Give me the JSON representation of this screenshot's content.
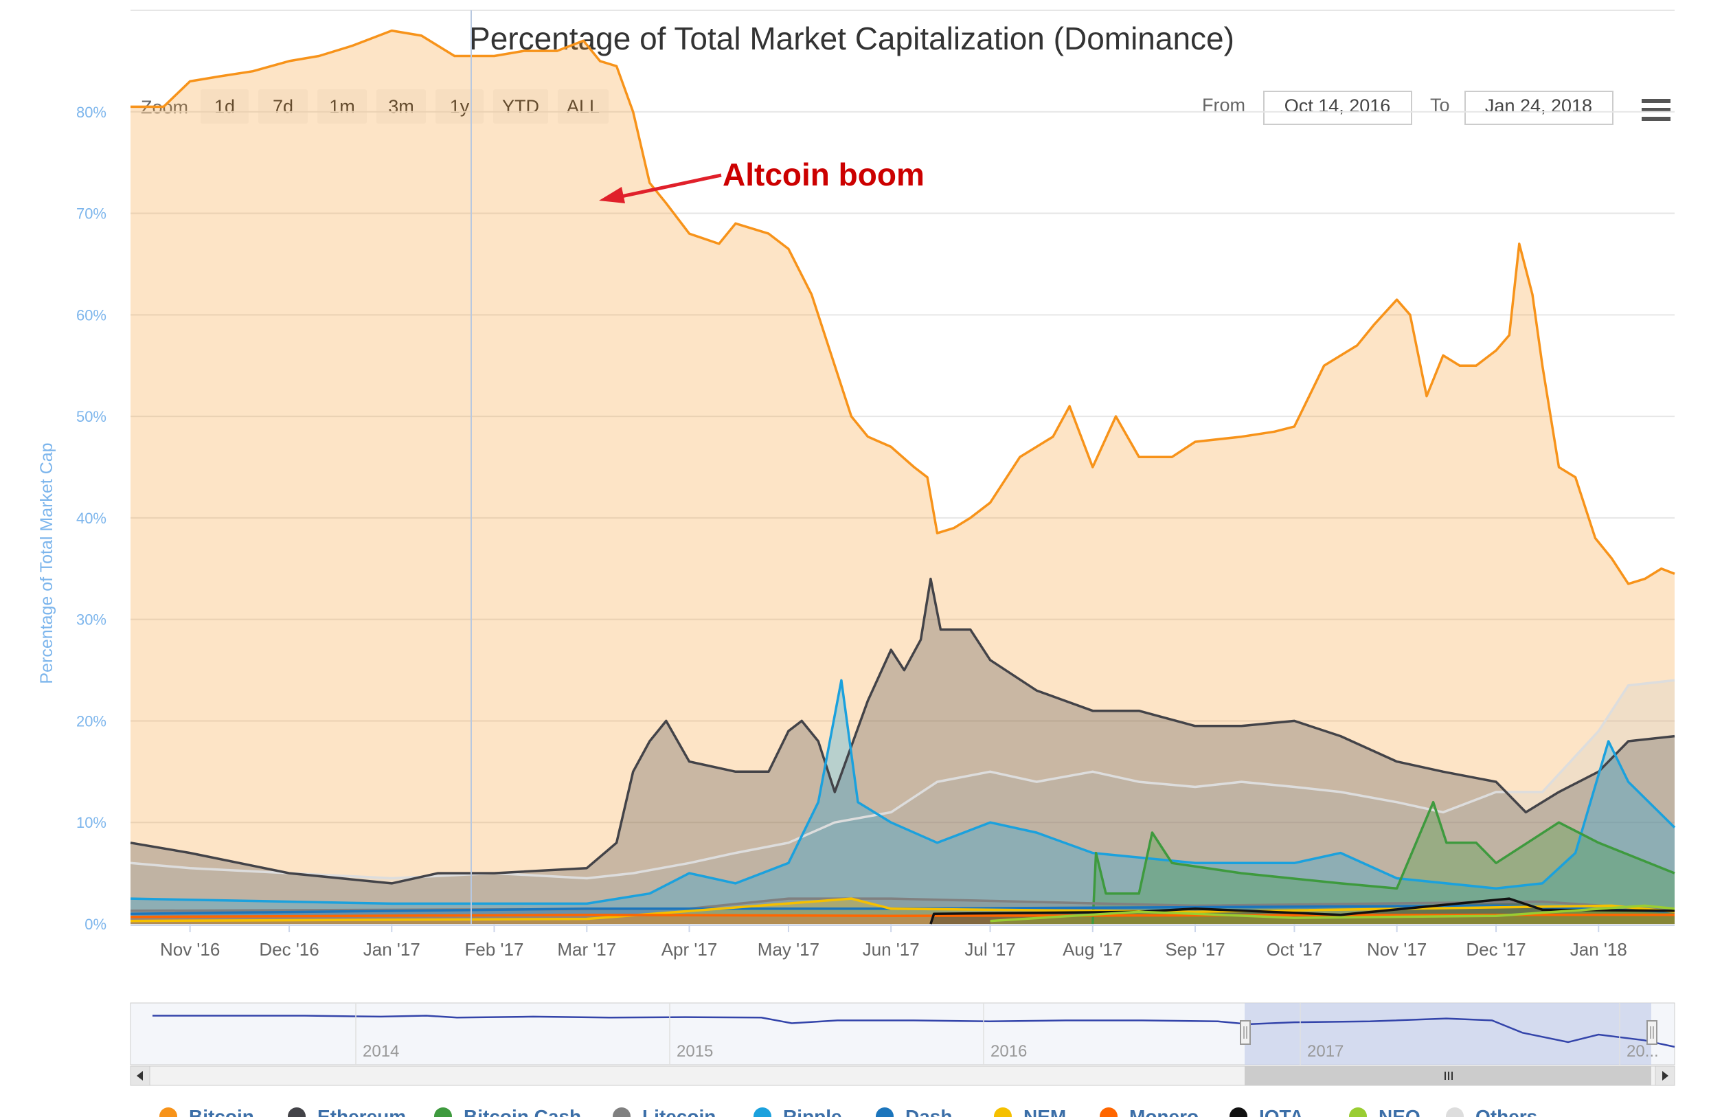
{
  "toolbar": {
    "zoom_label": "Zoom",
    "zoom_buttons": [
      "1d",
      "7d",
      "1m",
      "3m",
      "1y",
      "YTD",
      "ALL"
    ],
    "from_label": "From",
    "from_value": "Oct 14, 2016",
    "to_label": "To",
    "to_value": "Jan 24, 2018"
  },
  "navigator": {
    "years": [
      "2014",
      "2015",
      "2016",
      "2017",
      "20..."
    ]
  },
  "colors": {
    "Bitcoin": "#f7931a",
    "Ethereum": "#434348",
    "Bitcoin Cash": "#3e9a3e",
    "Litecoin": "#808080",
    "Ripple": "#1ba1dd",
    "Dash": "#1c75bc",
    "NEM": "#f5c000",
    "Monero": "#ff6600",
    "IOTA": "#111111",
    "NEO": "#9acd32",
    "Others": "#dddddd",
    "annotation": "#cc0000"
  },
  "chart_data": {
    "type": "area",
    "title": "Percentage of Total Market Capitalization (Dominance)",
    "ylabel": "Percentage of Total Market Cap",
    "xlabel": "",
    "ylim": [
      0,
      90
    ],
    "yticks": [
      "0%",
      "10%",
      "20%",
      "30%",
      "40%",
      "50%",
      "60%",
      "70%",
      "80%"
    ],
    "xticks": [
      "Nov '16",
      "Dec '16",
      "Jan '17",
      "Feb '17",
      "Mar '17",
      "Apr '17",
      "May '17",
      "Jun '17",
      "Jul '17",
      "Aug '17",
      "Sep '17",
      "Oct '17",
      "Nov '17",
      "Dec '17",
      "Jan '18"
    ],
    "xrange": [
      "2016-10-14",
      "2018-01-24"
    ],
    "grid": true,
    "legend_position": "bottom",
    "annotation": {
      "text": "Altcoin boom",
      "date": "2017-03-01",
      "value": 86
    },
    "series": [
      {
        "name": "Bitcoin",
        "points": [
          [
            "2016-10-14",
            80.5
          ],
          [
            "2016-10-24",
            80.5
          ],
          [
            "2016-11-01",
            83
          ],
          [
            "2016-11-10",
            83.5
          ],
          [
            "2016-11-20",
            84
          ],
          [
            "2016-12-01",
            85
          ],
          [
            "2016-12-10",
            85.5
          ],
          [
            "2016-12-20",
            86.5
          ],
          [
            "2017-01-01",
            88
          ],
          [
            "2017-01-10",
            87.5
          ],
          [
            "2017-01-20",
            85.5
          ],
          [
            "2017-02-01",
            85.5
          ],
          [
            "2017-02-10",
            86
          ],
          [
            "2017-02-20",
            86
          ],
          [
            "2017-02-28",
            87
          ],
          [
            "2017-03-05",
            85
          ],
          [
            "2017-03-10",
            84.5
          ],
          [
            "2017-03-15",
            80
          ],
          [
            "2017-03-20",
            73
          ],
          [
            "2017-03-25",
            71
          ],
          [
            "2017-04-01",
            68
          ],
          [
            "2017-04-10",
            67
          ],
          [
            "2017-04-15",
            69
          ],
          [
            "2017-04-25",
            68
          ],
          [
            "2017-05-01",
            66.5
          ],
          [
            "2017-05-08",
            62
          ],
          [
            "2017-05-15",
            55
          ],
          [
            "2017-05-20",
            50
          ],
          [
            "2017-05-25",
            48
          ],
          [
            "2017-06-01",
            47
          ],
          [
            "2017-06-08",
            45
          ],
          [
            "2017-06-12",
            44
          ],
          [
            "2017-06-15",
            38.5
          ],
          [
            "2017-06-20",
            39
          ],
          [
            "2017-06-25",
            40
          ],
          [
            "2017-07-01",
            41.5
          ],
          [
            "2017-07-10",
            46
          ],
          [
            "2017-07-20",
            48
          ],
          [
            "2017-07-25",
            51
          ],
          [
            "2017-08-01",
            45
          ],
          [
            "2017-08-08",
            50
          ],
          [
            "2017-08-15",
            46
          ],
          [
            "2017-08-25",
            46
          ],
          [
            "2017-09-01",
            47.5
          ],
          [
            "2017-09-15",
            48
          ],
          [
            "2017-09-25",
            48.5
          ],
          [
            "2017-10-01",
            49
          ],
          [
            "2017-10-10",
            55
          ],
          [
            "2017-10-20",
            57
          ],
          [
            "2017-10-25",
            59
          ],
          [
            "2017-11-01",
            61.5
          ],
          [
            "2017-11-05",
            60
          ],
          [
            "2017-11-10",
            52
          ],
          [
            "2017-11-15",
            56
          ],
          [
            "2017-11-20",
            55
          ],
          [
            "2017-11-25",
            55
          ],
          [
            "2017-12-01",
            56.5
          ],
          [
            "2017-12-05",
            58
          ],
          [
            "2017-12-08",
            67
          ],
          [
            "2017-12-12",
            62
          ],
          [
            "2017-12-15",
            55
          ],
          [
            "2017-12-20",
            45
          ],
          [
            "2017-12-25",
            44
          ],
          [
            "2017-12-31",
            38
          ],
          [
            "2018-01-05",
            36
          ],
          [
            "2018-01-10",
            33.5
          ],
          [
            "2018-01-15",
            34
          ],
          [
            "2018-01-20",
            35
          ],
          [
            "2018-01-24",
            34.5
          ]
        ]
      },
      {
        "name": "Others",
        "points": [
          [
            "2016-10-14",
            6
          ],
          [
            "2016-11-01",
            5.5
          ],
          [
            "2016-12-01",
            5
          ],
          [
            "2017-01-01",
            4.5
          ],
          [
            "2017-02-01",
            5
          ],
          [
            "2017-03-01",
            4.5
          ],
          [
            "2017-03-15",
            5
          ],
          [
            "2017-04-01",
            6
          ],
          [
            "2017-04-15",
            7
          ],
          [
            "2017-05-01",
            8
          ],
          [
            "2017-05-15",
            10
          ],
          [
            "2017-06-01",
            11
          ],
          [
            "2017-06-15",
            14
          ],
          [
            "2017-07-01",
            15
          ],
          [
            "2017-07-15",
            14
          ],
          [
            "2017-08-01",
            15
          ],
          [
            "2017-08-15",
            14
          ],
          [
            "2017-09-01",
            13.5
          ],
          [
            "2017-09-15",
            14
          ],
          [
            "2017-10-01",
            13.5
          ],
          [
            "2017-10-15",
            13
          ],
          [
            "2017-11-01",
            12
          ],
          [
            "2017-11-15",
            11
          ],
          [
            "2017-12-01",
            13
          ],
          [
            "2017-12-15",
            13
          ],
          [
            "2018-01-01",
            19
          ],
          [
            "2018-01-10",
            23.5
          ],
          [
            "2018-01-24",
            24
          ]
        ]
      },
      {
        "name": "Ethereum",
        "points": [
          [
            "2016-10-14",
            8
          ],
          [
            "2016-11-01",
            7
          ],
          [
            "2016-12-01",
            5
          ],
          [
            "2017-01-01",
            4
          ],
          [
            "2017-01-15",
            5
          ],
          [
            "2017-02-01",
            5
          ],
          [
            "2017-03-01",
            5.5
          ],
          [
            "2017-03-10",
            8
          ],
          [
            "2017-03-15",
            15
          ],
          [
            "2017-03-20",
            18
          ],
          [
            "2017-03-25",
            20
          ],
          [
            "2017-04-01",
            16
          ],
          [
            "2017-04-15",
            15
          ],
          [
            "2017-04-25",
            15
          ],
          [
            "2017-05-01",
            19
          ],
          [
            "2017-05-05",
            20
          ],
          [
            "2017-05-10",
            18
          ],
          [
            "2017-05-15",
            13
          ],
          [
            "2017-05-25",
            22
          ],
          [
            "2017-06-01",
            27
          ],
          [
            "2017-06-05",
            25
          ],
          [
            "2017-06-10",
            28
          ],
          [
            "2017-06-13",
            34
          ],
          [
            "2017-06-16",
            29
          ],
          [
            "2017-06-25",
            29
          ],
          [
            "2017-07-01",
            26
          ],
          [
            "2017-07-15",
            23
          ],
          [
            "2017-08-01",
            21
          ],
          [
            "2017-08-15",
            21
          ],
          [
            "2017-09-01",
            19.5
          ],
          [
            "2017-09-15",
            19.5
          ],
          [
            "2017-10-01",
            20
          ],
          [
            "2017-10-15",
            18.5
          ],
          [
            "2017-11-01",
            16
          ],
          [
            "2017-11-15",
            15
          ],
          [
            "2017-12-01",
            14
          ],
          [
            "2017-12-10",
            11
          ],
          [
            "2017-12-20",
            13
          ],
          [
            "2018-01-01",
            15
          ],
          [
            "2018-01-10",
            18
          ],
          [
            "2018-01-24",
            18.5
          ]
        ]
      },
      {
        "name": "Ripple",
        "points": [
          [
            "2016-10-14",
            2.5
          ],
          [
            "2017-01-01",
            2
          ],
          [
            "2017-03-01",
            2
          ],
          [
            "2017-03-20",
            3
          ],
          [
            "2017-04-01",
            5
          ],
          [
            "2017-04-15",
            4
          ],
          [
            "2017-05-01",
            6
          ],
          [
            "2017-05-10",
            12
          ],
          [
            "2017-05-17",
            24
          ],
          [
            "2017-05-22",
            12
          ],
          [
            "2017-06-01",
            10
          ],
          [
            "2017-06-15",
            8
          ],
          [
            "2017-07-01",
            10
          ],
          [
            "2017-07-15",
            9
          ],
          [
            "2017-08-01",
            7
          ],
          [
            "2017-09-01",
            6
          ],
          [
            "2017-10-01",
            6
          ],
          [
            "2017-10-15",
            7
          ],
          [
            "2017-11-01",
            4.5
          ],
          [
            "2017-12-01",
            3.5
          ],
          [
            "2017-12-15",
            4
          ],
          [
            "2017-12-25",
            7
          ],
          [
            "2018-01-04",
            18
          ],
          [
            "2018-01-10",
            14
          ],
          [
            "2018-01-24",
            9.5
          ]
        ]
      },
      {
        "name": "Bitcoin Cash",
        "points": [
          [
            "2017-08-01",
            0
          ],
          [
            "2017-08-02",
            7
          ],
          [
            "2017-08-05",
            3
          ],
          [
            "2017-08-15",
            3
          ],
          [
            "2017-08-19",
            9
          ],
          [
            "2017-08-25",
            6
          ],
          [
            "2017-09-15",
            5
          ],
          [
            "2017-10-15",
            4
          ],
          [
            "2017-11-01",
            3.5
          ],
          [
            "2017-11-12",
            12
          ],
          [
            "2017-11-16",
            8
          ],
          [
            "2017-11-25",
            8
          ],
          [
            "2017-12-01",
            6
          ],
          [
            "2017-12-20",
            10
          ],
          [
            "2018-01-01",
            8
          ],
          [
            "2018-01-24",
            5
          ]
        ]
      },
      {
        "name": "Litecoin",
        "points": [
          [
            "2016-10-14",
            1.3
          ],
          [
            "2017-04-01",
            1.5
          ],
          [
            "2017-05-01",
            2.5
          ],
          [
            "2017-06-01",
            2.5
          ],
          [
            "2017-09-01",
            1.8
          ],
          [
            "2017-12-15",
            2.2
          ],
          [
            "2018-01-24",
            1.3
          ]
        ]
      },
      {
        "name": "Dash",
        "points": [
          [
            "2016-10-14",
            1
          ],
          [
            "2017-03-01",
            1.5
          ],
          [
            "2017-06-01",
            1.5
          ],
          [
            "2017-12-01",
            1.8
          ],
          [
            "2018-01-24",
            1.2
          ]
        ]
      },
      {
        "name": "NEM",
        "points": [
          [
            "2016-10-14",
            0.3
          ],
          [
            "2017-03-01",
            0.5
          ],
          [
            "2017-05-20",
            2.5
          ],
          [
            "2017-06-01",
            1.5
          ],
          [
            "2017-09-01",
            1.2
          ],
          [
            "2018-01-05",
            1.8
          ],
          [
            "2018-01-24",
            1.2
          ]
        ]
      },
      {
        "name": "Monero",
        "points": [
          [
            "2016-10-14",
            0.7
          ],
          [
            "2017-03-01",
            0.9
          ],
          [
            "2017-06-01",
            0.8
          ],
          [
            "2017-12-01",
            0.9
          ],
          [
            "2018-01-24",
            0.9
          ]
        ]
      },
      {
        "name": "IOTA",
        "points": [
          [
            "2017-06-13",
            0
          ],
          [
            "2017-06-14",
            1
          ],
          [
            "2017-08-15",
            1.2
          ],
          [
            "2017-09-01",
            1.5
          ],
          [
            "2017-10-15",
            0.9
          ],
          [
            "2017-12-05",
            2.5
          ],
          [
            "2017-12-15",
            1.4
          ],
          [
            "2018-01-24",
            1.3
          ]
        ]
      },
      {
        "name": "NEO",
        "points": [
          [
            "2017-07-01",
            0.3
          ],
          [
            "2017-08-15",
            1.2
          ],
          [
            "2017-09-01",
            1
          ],
          [
            "2017-10-01",
            0.6
          ],
          [
            "2017-12-01",
            0.8
          ],
          [
            "2018-01-15",
            1.8
          ],
          [
            "2018-01-24",
            1.5
          ]
        ]
      }
    ]
  },
  "navigator_data": {
    "bitcoin_history": [
      [
        0,
        88
      ],
      [
        0.05,
        88
      ],
      [
        0.1,
        88
      ],
      [
        0.15,
        87
      ],
      [
        0.18,
        88
      ],
      [
        0.2,
        86
      ],
      [
        0.25,
        87
      ],
      [
        0.3,
        86
      ],
      [
        0.35,
        86.5
      ],
      [
        0.4,
        86
      ],
      [
        0.42,
        80
      ],
      [
        0.45,
        83
      ],
      [
        0.5,
        83
      ],
      [
        0.55,
        82
      ],
      [
        0.6,
        83
      ],
      [
        0.65,
        83
      ],
      [
        0.7,
        82
      ],
      [
        0.72,
        79
      ],
      [
        0.75,
        81
      ],
      [
        0.8,
        82
      ],
      [
        0.85,
        85
      ],
      [
        0.88,
        83
      ],
      [
        0.9,
        70
      ],
      [
        0.93,
        60
      ],
      [
        0.95,
        68
      ],
      [
        0.98,
        62
      ],
      [
        1.0,
        55
      ]
    ]
  }
}
